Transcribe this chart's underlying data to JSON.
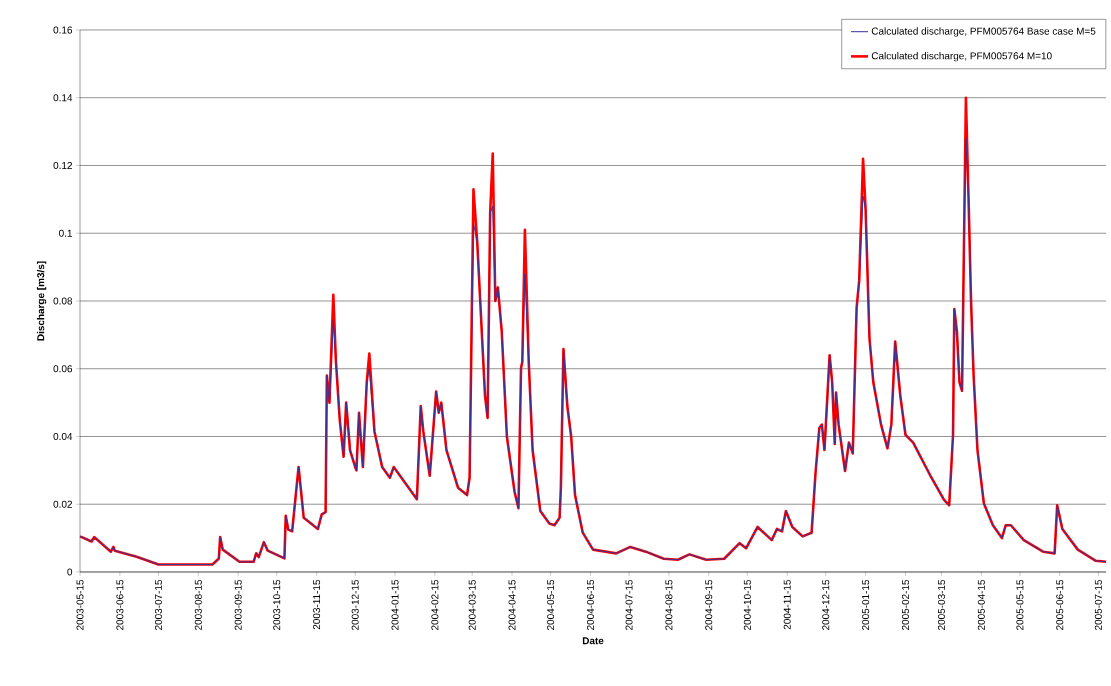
{
  "chart_data": {
    "type": "line",
    "xlabel": "Date",
    "ylabel": "Discharge [m3/s]",
    "x": [
      "2003-05-15",
      "2003-05-24",
      "2003-05-26",
      "2003-06-08",
      "2003-06-10",
      "2003-06-11",
      "2003-06-28",
      "2003-07-15",
      "2003-08-26",
      "2003-08-31",
      "2003-09-01",
      "2003-09-03",
      "2003-09-16",
      "2003-09-27",
      "2003-09-29",
      "2003-10-01",
      "2003-10-05",
      "2003-10-08",
      "2003-10-21",
      "2003-10-22",
      "2003-10-24",
      "2003-10-27",
      "2003-11-01",
      "2003-11-05",
      "2003-11-16",
      "2003-11-19",
      "2003-11-22",
      "2003-11-23",
      "2003-11-25",
      "2003-11-28",
      "2003-11-30",
      "2003-12-03",
      "2003-12-06",
      "2003-12-08",
      "2003-12-11",
      "2003-12-15",
      "2003-12-16",
      "2003-12-18",
      "2003-12-21",
      "2003-12-24",
      "2003-12-26",
      "2003-12-30",
      "2004-01-05",
      "2004-01-11",
      "2004-01-14",
      "2004-02-01",
      "2004-02-04",
      "2004-02-06",
      "2004-02-11",
      "2004-02-16",
      "2004-02-18",
      "2004-02-20",
      "2004-02-24",
      "2004-03-04",
      "2004-03-11",
      "2004-03-13",
      "2004-03-16",
      "2004-03-19",
      "2004-03-21",
      "2004-03-25",
      "2004-03-27",
      "2004-03-29",
      "2004-03-31",
      "2004-04-02",
      "2004-04-04",
      "2004-04-07",
      "2004-04-11",
      "2004-04-17",
      "2004-04-20",
      "2004-04-22",
      "2004-04-23",
      "2004-04-25",
      "2004-04-28",
      "2004-05-01",
      "2004-05-07",
      "2004-05-14",
      "2004-05-18",
      "2004-05-22",
      "2004-05-23",
      "2004-05-25",
      "2004-05-28",
      "2004-05-31",
      "2004-06-03",
      "2004-06-09",
      "2004-06-17",
      "2004-07-05",
      "2004-07-16",
      "2004-07-28",
      "2004-08-11",
      "2004-08-22",
      "2004-08-31",
      "2004-09-13",
      "2004-09-27",
      "2004-10-09",
      "2004-10-14",
      "2004-10-23",
      "2004-11-03",
      "2004-11-07",
      "2004-11-11",
      "2004-11-14",
      "2004-11-19",
      "2004-11-27",
      "2004-12-04",
      "2004-12-07",
      "2004-12-10",
      "2004-12-12",
      "2004-12-14",
      "2004-12-18",
      "2004-12-20",
      "2004-12-22",
      "2004-12-23",
      "2004-12-25",
      "2004-12-30",
      "2005-01-02",
      "2005-01-05",
      "2005-01-08",
      "2005-01-10",
      "2005-01-13",
      "2005-01-15",
      "2005-01-18",
      "2005-01-21",
      "2005-01-27",
      "2005-02-01",
      "2005-02-04",
      "2005-02-07",
      "2005-02-11",
      "2005-02-15",
      "2005-02-21",
      "2005-03-06",
      "2005-03-17",
      "2005-03-21",
      "2005-03-24",
      "2005-03-25",
      "2005-03-27",
      "2005-03-29",
      "2005-03-31",
      "2005-04-02",
      "2005-04-03",
      "2005-04-05",
      "2005-04-07",
      "2005-04-09",
      "2005-04-12",
      "2005-04-17",
      "2005-04-24",
      "2005-05-01",
      "2005-05-04",
      "2005-05-08",
      "2005-05-18",
      "2005-06-02",
      "2005-06-11",
      "2005-06-13",
      "2005-06-17",
      "2005-06-29",
      "2005-07-13",
      "2005-07-21"
    ],
    "series": [
      {
        "name": "Calculated discharge, PFM005764 Base case M=5",
        "color": "#333399",
        "values": [
          0.0105,
          0.009,
          0.0103,
          0.006,
          0.0074,
          0.0063,
          0.0045,
          0.0022,
          0.0022,
          0.004,
          0.0103,
          0.0066,
          0.003,
          0.003,
          0.0055,
          0.0044,
          0.0088,
          0.0063,
          0.004,
          0.0166,
          0.0125,
          0.012,
          0.031,
          0.016,
          0.0127,
          0.017,
          0.0177,
          0.058,
          0.05,
          0.0745,
          0.0625,
          0.045,
          0.034,
          0.05,
          0.036,
          0.031,
          0.03,
          0.047,
          0.031,
          0.056,
          0.06,
          0.0415,
          0.031,
          0.0278,
          0.031,
          0.0215,
          0.049,
          0.0415,
          0.0284,
          0.0533,
          0.047,
          0.05,
          0.036,
          0.0249,
          0.0227,
          0.0278,
          0.103,
          0.097,
          0.082,
          0.052,
          0.0455,
          0.106,
          0.108,
          0.08,
          0.084,
          0.071,
          0.04,
          0.0236,
          0.0188,
          0.0602,
          0.062,
          0.088,
          0.062,
          0.036,
          0.018,
          0.0143,
          0.0138,
          0.016,
          0.025,
          0.0658,
          0.049,
          0.04,
          0.0227,
          0.0116,
          0.0066,
          0.0055,
          0.0074,
          0.006,
          0.0039,
          0.0036,
          0.0052,
          0.0036,
          0.0039,
          0.0085,
          0.007,
          0.0133,
          0.0094,
          0.0127,
          0.012,
          0.018,
          0.0133,
          0.0105,
          0.0116,
          0.029,
          0.0425,
          0.0435,
          0.036,
          0.064,
          0.056,
          0.0378,
          0.053,
          0.0435,
          0.0298,
          0.0382,
          0.035,
          0.078,
          0.086,
          0.111,
          0.107,
          0.069,
          0.056,
          0.0435,
          0.0365,
          0.0435,
          0.068,
          0.052,
          0.0405,
          0.0382,
          0.0287,
          0.0213,
          0.0197,
          0.0405,
          0.0776,
          0.071,
          0.056,
          0.0535,
          0.111,
          0.128,
          0.111,
          0.08,
          0.058,
          0.036,
          0.0202,
          0.0138,
          0.01,
          0.0138,
          0.0138,
          0.0094,
          0.006,
          0.0055,
          0.0197,
          0.0127,
          0.0066,
          0.0033,
          0.003
        ]
      },
      {
        "name": "Calculated discharge, PFM005764 M=10",
        "color": "#ff0000",
        "values": [
          0.0105,
          0.009,
          0.0103,
          0.006,
          0.0074,
          0.0063,
          0.0045,
          0.0022,
          0.0022,
          0.004,
          0.0103,
          0.0066,
          0.003,
          0.003,
          0.0055,
          0.0044,
          0.0088,
          0.0063,
          0.004,
          0.0166,
          0.0125,
          0.012,
          0.031,
          0.016,
          0.0127,
          0.017,
          0.0177,
          0.058,
          0.05,
          0.0818,
          0.0625,
          0.045,
          0.034,
          0.05,
          0.036,
          0.031,
          0.03,
          0.047,
          0.031,
          0.056,
          0.0645,
          0.0415,
          0.031,
          0.0278,
          0.031,
          0.0215,
          0.049,
          0.0415,
          0.0284,
          0.0533,
          0.047,
          0.05,
          0.036,
          0.0249,
          0.0227,
          0.0278,
          0.113,
          0.097,
          0.082,
          0.052,
          0.0455,
          0.106,
          0.1235,
          0.08,
          0.084,
          0.071,
          0.04,
          0.0236,
          0.0188,
          0.0602,
          0.062,
          0.101,
          0.062,
          0.036,
          0.018,
          0.0143,
          0.0138,
          0.016,
          0.025,
          0.0658,
          0.049,
          0.04,
          0.0227,
          0.0116,
          0.0066,
          0.0055,
          0.0074,
          0.006,
          0.0039,
          0.0036,
          0.0052,
          0.0036,
          0.0039,
          0.0085,
          0.007,
          0.0133,
          0.0094,
          0.0127,
          0.012,
          0.018,
          0.0133,
          0.0105,
          0.0116,
          0.029,
          0.0425,
          0.0435,
          0.036,
          0.064,
          0.056,
          0.0378,
          0.053,
          0.0435,
          0.0298,
          0.0382,
          0.035,
          0.078,
          0.086,
          0.122,
          0.107,
          0.069,
          0.056,
          0.0435,
          0.0365,
          0.0435,
          0.068,
          0.052,
          0.0405,
          0.0382,
          0.0287,
          0.0213,
          0.0197,
          0.0405,
          0.0776,
          0.071,
          0.056,
          0.0535,
          0.111,
          0.14,
          0.111,
          0.08,
          0.058,
          0.036,
          0.0202,
          0.0138,
          0.01,
          0.0138,
          0.0138,
          0.0094,
          0.006,
          0.0055,
          0.0197,
          0.0127,
          0.0066,
          0.0033,
          0.003
        ]
      }
    ],
    "xlim": [
      "2003-05-15",
      "2005-07-21"
    ],
    "xticks": [
      "2003-05-15",
      "2003-06-15",
      "2003-07-15",
      "2003-08-15",
      "2003-09-15",
      "2003-10-15",
      "2003-11-15",
      "2003-12-15",
      "2004-01-15",
      "2004-02-15",
      "2004-03-15",
      "2004-04-15",
      "2004-05-15",
      "2004-06-15",
      "2004-07-15",
      "2004-08-15",
      "2004-09-15",
      "2004-10-15",
      "2004-11-15",
      "2004-12-15",
      "2005-01-15",
      "2005-02-15",
      "2005-03-15",
      "2005-04-15",
      "2005-05-15",
      "2005-06-15",
      "2005-07-15"
    ],
    "ylim": [
      0,
      0.16
    ],
    "yticks": [
      0,
      0.02,
      0.04,
      0.06,
      0.08,
      0.1,
      0.12,
      0.14,
      0.16
    ],
    "grid": "y",
    "legend": "top right",
    "line_style": "solid"
  }
}
